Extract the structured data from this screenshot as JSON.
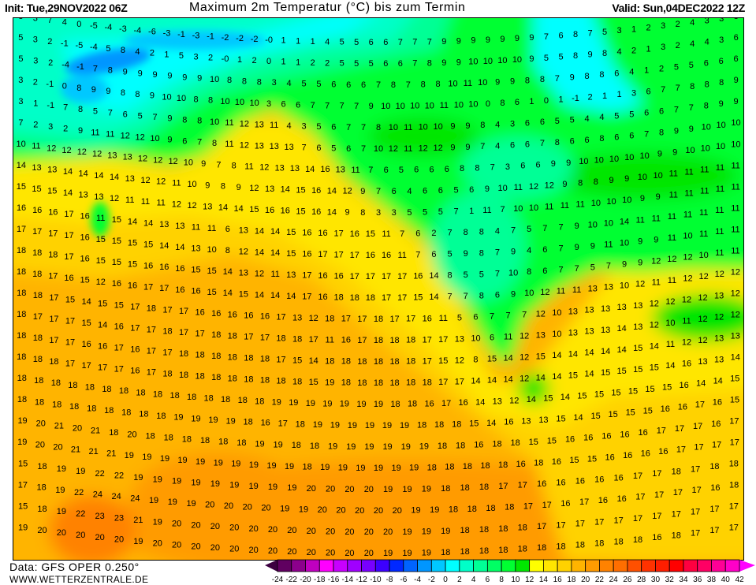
{
  "header": {
    "init": "Init: Tue,29NOV2022 06Z",
    "title": "Maximum 2m Temperatur (°C) bis zum Termin",
    "valid": "Valid: Sun,04DEC2022 12Z"
  },
  "footer": {
    "data_source": "Data: GFS OPER 0.250°",
    "website": "WWW.WETTERZENTRALE.DE"
  },
  "colorbar": {
    "labels": [
      "-24",
      "-22",
      "-20",
      "-18",
      "-16",
      "-14",
      "-12",
      "-10",
      "-8",
      "-6",
      "-4",
      "-2",
      "0",
      "2",
      "4",
      "6",
      "8",
      "10",
      "12",
      "14",
      "16",
      "18",
      "20",
      "22",
      "24",
      "26",
      "28",
      "30",
      "32",
      "34",
      "36",
      "38",
      "40",
      "42"
    ],
    "below_color": "#3c0040",
    "above_color": "#ff00ff",
    "colors": [
      "#600060",
      "#8c008c",
      "#c000c0",
      "#ff00ff",
      "#c800ff",
      "#a000ff",
      "#7800ff",
      "#3c00ff",
      "#0028ff",
      "#0064ff",
      "#0096ff",
      "#00c8ff",
      "#00ffff",
      "#00ffc8",
      "#00ff96",
      "#00ff64",
      "#00ff32",
      "#00e600",
      "#ffff00",
      "#ffe600",
      "#ffd200",
      "#ffb400",
      "#ff9b00",
      "#ff8200",
      "#ff6e00",
      "#ff5000",
      "#ff3200",
      "#ff1e00",
      "#ff0000",
      "#ff0040",
      "#ff0064",
      "#ff0096",
      "#ff00c8"
    ]
  },
  "map": {
    "unit": "°C",
    "rows": [
      "8 3 7 4 0 -5 -4 -3 -4 -6 -3 -1 -3 -1 -2 -2 -2 -0 1 1 1 4 5 5 6 6 7 7 7 9 9 9 9 9 9 9 7 6 8 7 5 3 1 2 3 2 4 3 3 3",
      "5 3 2 -1 -5 -4 5 8 4 2 1 5 3 2 -0 1 2 0 1 1 2 2 5 5 5 6 6 7 8 9 9 10 10 10 10 9 5 5 8 9 8 4 2 1 3 2 4 4 3 6",
      "5 3 2 -4 -1 7 8 9 9 9 9 9 9 10 8 8 8 3 4 5 5 6 6 6 7 8 7 8 8 10 11 10 9 9 8 8 7 9 8 8 6 4 1 2 5 5 6 6 6",
      "3 2 -1 0 8 9 9 8 8 9 10 10 8 8 10 10 10 3 6 6 7 7 7 7 9 10 10 10 10 11 10 10 0 8 6 1 0 1 -1 2 1 1 3 6 7 7 8 8 8 9",
      "3 1 -1 7 8 5 7 6 5 7 9 8 8 10 11 12 13 11 4 3 5 6 7 7 8 10 11 10 10 9 9 8 4 3 6 6 5 5 4 4 5 5 6 6 7 7 8 9 9",
      "7 2 3 2 9 11 11 12 12 10 9 6 7 8 11 12 13 13 13 7 6 5 6 7 10 12 11 12 12 9 9 7 4 6 6 7 8 6 6 8 6 6 7 8 9 9 10 10 10",
      "10 11 12 12 12 12 13 13 12 12 12 10 9 7 8 11 12 13 13 14 16 13 11 7 6 5 6 6 6 8 8 7 3 6 6 9 9 10 10 10 10 10 9 9 10 10 10 10",
      "14 13 13 14 14 14 14 13 12 12 11 10 9 8 9 12 13 14 15 16 14 12 9 7 6 4 6 6 5 6 9 10 11 12 12 9 8 8 9 9 10 10 11 11 11 11 11",
      "15 15 15 14 13 13 12 11 11 11 12 12 13 14 14 15 16 16 15 16 14 9 8 3 3 5 5 5 7 1 11 7 10 10 11 11 11 10 10 10 9 9 11 11 11 11 11",
      "16 16 16 17 16 11 15 14 14 13 13 11 11 6 13 14 14 15 16 16 17 16 15 11 7 6 2 7 8 8 4 7 5 7 7 9 10 10 14 11 11 11 11 11 11 11",
      "17 17 17 17 16 15 15 15 15 14 14 13 10 8 12 14 14 15 16 17 17 17 16 16 11 7 6 5 9 8 7 9 4 6 7 9 9 11 10 9 9 11 10 11 11 11",
      "18 18 18 17 16 15 15 15 16 16 16 15 15 14 13 12 11 13 17 16 16 17 17 17 17 16 14 8 5 5 7 10 8 6 7 7 5 7 9 9 12 12 12 10 11 11",
      "18 18 17 16 15 12 16 16 17 17 16 16 15 14 15 14 14 14 17 16 18 18 18 17 17 15 14 7 7 8 6 9 10 12 11 11 13 13 10 12 11 11 12 12 12 12",
      "18 18 17 15 14 15 15 17 18 17 17 16 16 16 16 16 17 13 12 18 17 17 18 17 17 16 11 5 6 7 7 7 12 10 13 13 13 13 13 12 12 12 12 13 12",
      "18 17 17 17 15 14 16 17 17 18 17 17 18 18 17 17 18 18 17 11 16 17 18 18 18 17 17 13 10 6 11 12 13 10 13 13 13 14 13 12 10 11 12 12 12",
      "18 18 17 17 16 16 17 16 17 17 18 18 18 18 18 18 17 15 14 18 18 18 18 18 18 17 15 12 8 15 14 12 15 14 14 14 14 14 15 14 11 12 12 13 13",
      "18 18 18 17 17 17 17 16 17 18 18 18 18 18 18 18 18 18 15 19 18 18 18 18 18 18 17 17 14 14 14 12 14 14 15 14 15 15 15 15 14 16 13 13 14",
      "18 18 18 18 18 18 18 18 18 18 18 18 18 18 18 19 19 19 19 19 19 19 18 18 16 17 16 14 13 12 14 15 14 15 15 15 15 15 15 16 14 14 15",
      "18 18 18 18 18 18 18 18 18 19 19 19 19 18 16 17 18 19 19 19 19 19 19 18 18 18 15 14 16 13 13 15 14 15 15 15 15 16 16 17 16 15",
      "19 20 21 20 21 18 20 18 18 18 18 18 18 19 19 18 18 19 19 19 19 19 19 18 18 16 18 18 15 15 16 16 16 16 16 17 17 17 16 17",
      "19 20 20 21 21 21 19 19 19 19 19 19 19 19 19 19 18 19 19 19 19 19 19 18 18 18 18 18 16 18 16 15 15 16 16 16 16 17 17 17 17",
      "15 18 19 19 22 22 19 19 19 19 19 19 19 19 19 20 20 20 20 19 19 19 18 18 18 17 17 16 16 16 16 16 17 17 18 17 18 18",
      "17 18 19 22 24 24 24 19 19 19 20 20 20 20 19 19 20 20 20 20 20 19 19 18 18 18 18 17 17 16 17 16 16 17 17 17 17 16 18",
      "15 18 19 22 23 23 21 19 20 20 20 20 20 20 20 20 20 20 20 20 19 19 19 18 18 18 18 17 17 17 17 17 17 17 17 17 17 17",
      "19 20 20 20 20 20 19 20 20 20 20 20 20 20 20 20 20 20 20 19 19 19 18 18 18 18 18 18 18 18 18 18 18 16 18 17 17 17"
    ]
  }
}
